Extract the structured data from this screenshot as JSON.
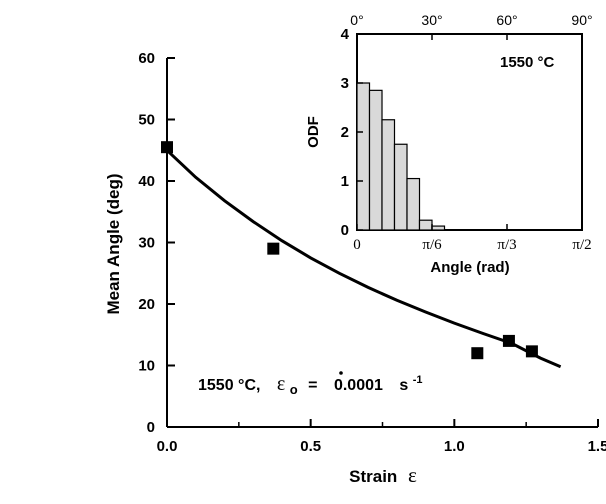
{
  "chart_data": [
    {
      "type": "scatter",
      "xlabel": "Strain",
      "xlabel_symbol": "ε",
      "ylabel": "Mean Angle (deg)",
      "xlim": [
        0,
        1.5
      ],
      "ylim": [
        0,
        60
      ],
      "xticks": [
        "0.0",
        "0.5",
        "1.0",
        "1.5"
      ],
      "xtick_values": [
        0,
        0.5,
        1.0,
        1.5
      ],
      "yticks": [
        "0",
        "10",
        "20",
        "30",
        "40",
        "50",
        "60"
      ],
      "ytick_values": [
        0,
        10,
        20,
        30,
        40,
        50,
        60
      ],
      "grid": false,
      "points": {
        "x": [
          0.0,
          0.37,
          1.08,
          1.19,
          1.27
        ],
        "y": [
          45.5,
          29.0,
          12.0,
          14.0,
          12.3
        ]
      },
      "fit_curve": {
        "x": [
          0,
          0.1,
          0.2,
          0.3,
          0.4,
          0.5,
          0.6,
          0.7,
          0.8,
          0.9,
          1.0,
          1.1,
          1.2,
          1.3,
          1.37
        ],
        "y": [
          45.0,
          40.6,
          36.8,
          33.4,
          30.3,
          27.5,
          25.0,
          22.7,
          20.6,
          18.7,
          16.9,
          15.2,
          13.6,
          11.2,
          9.8
        ]
      },
      "annotation": {
        "temp": "1550 °C,",
        "rate_symbol": "ε",
        "rate_subscript": "o",
        "equals": "=",
        "rate_value": "0.0001",
        "unit": "s",
        "unit_exp": "-1"
      }
    },
    {
      "type": "bar",
      "name": "inset",
      "xlabel": "Angle (rad)",
      "ylabel": "ODF",
      "xlim": [
        0,
        1.5708
      ],
      "ylim": [
        0,
        4
      ],
      "xticks": [
        "0",
        "π/6",
        "π/3",
        "π/2"
      ],
      "xtick_values": [
        0,
        0.5236,
        1.0472,
        1.5708
      ],
      "top_ticks": [
        "0°",
        "30°",
        "60°",
        "90°"
      ],
      "top_tick_values": [
        0,
        30,
        60,
        90
      ],
      "yticks": [
        "0",
        "1",
        "2",
        "3",
        "4"
      ],
      "ytick_values": [
        0,
        1,
        2,
        3,
        4
      ],
      "bin_width": 0.0873,
      "bin_starts": [
        0,
        0.0873,
        0.1745,
        0.2618,
        0.3491,
        0.4363,
        0.5236
      ],
      "values": [
        3.0,
        2.85,
        2.25,
        1.75,
        1.05,
        0.2,
        0.08
      ],
      "label": "1550 °C",
      "bar_color": "#d9d9d9"
    }
  ]
}
